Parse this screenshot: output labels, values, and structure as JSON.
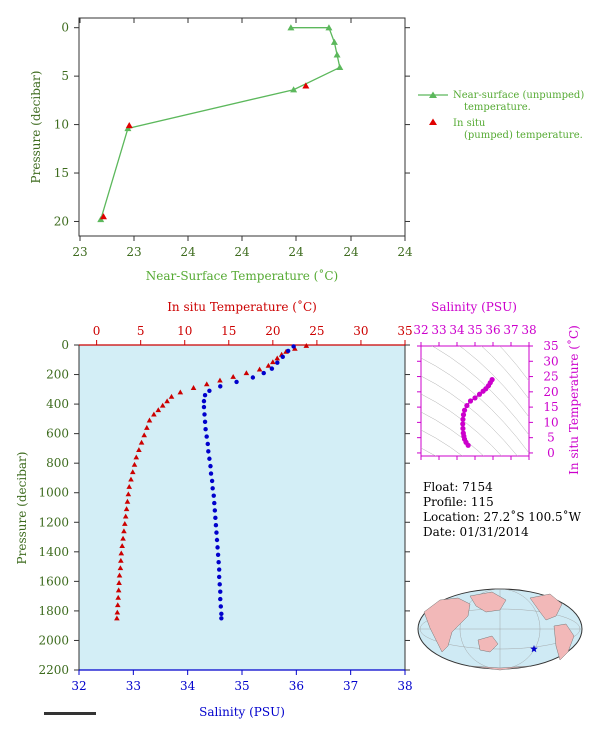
{
  "chart_data": [
    {
      "id": "near-surface",
      "type": "line",
      "xlabel": "Near-Surface Temperature (˚C)",
      "ylabel": "Pressure (decibar)",
      "xticks": [
        "23",
        "23",
        "24",
        "24",
        "24",
        "24",
        "24"
      ],
      "yticks": [
        "0",
        "5",
        "10",
        "15",
        "20"
      ],
      "ylim": [
        -1,
        21.5
      ],
      "y_reversed": true,
      "series": [
        {
          "name": "Near-surface (unpumped) temperature.",
          "marker": "triangle",
          "color": "#5cb85c",
          "points": [
            [
              23.68,
              0
            ],
            [
              23.82,
              0
            ],
            [
              23.84,
              1.5
            ],
            [
              23.85,
              2.8
            ],
            [
              23.86,
              4.1
            ],
            [
              23.69,
              6.4
            ],
            [
              23.08,
              10.4
            ],
            [
              22.98,
              19.8
            ]
          ]
        },
        {
          "name": "In situ (pumped) temperature.",
          "marker": "triangle",
          "color": "#e00000",
          "points": [
            [
              23.735,
              6.0
            ],
            [
              23.085,
              10.1
            ],
            [
              22.99,
              19.5
            ]
          ]
        }
      ]
    },
    {
      "id": "profile",
      "type": "scatter",
      "ylabel": "Pressure (decibar)",
      "yticks": [
        "0",
        "200",
        "400",
        "600",
        "800",
        "1000",
        "1200",
        "1400",
        "1600",
        "1800",
        "2000",
        "2200"
      ],
      "ylim": [
        0,
        2200
      ],
      "temperature_axis": {
        "label": "In situ Temperature (˚C)",
        "ticks": [
          "0",
          "5",
          "10",
          "15",
          "20",
          "25",
          "30",
          "35"
        ],
        "range": [
          -2,
          35
        ],
        "color": "#cc0000"
      },
      "salinity_axis": {
        "label": "Salinity (PSU)",
        "ticks": [
          "32",
          "33",
          "34",
          "35",
          "36",
          "37",
          "38"
        ],
        "range": [
          32,
          38
        ],
        "color": "#0000cc"
      },
      "temperature": [
        [
          23.8,
          5
        ],
        [
          22.5,
          25
        ],
        [
          21.5,
          45
        ],
        [
          21.0,
          65
        ],
        [
          20.5,
          90
        ],
        [
          20.0,
          115
        ],
        [
          19.5,
          140
        ],
        [
          18.5,
          165
        ],
        [
          17.0,
          190
        ],
        [
          15.5,
          215
        ],
        [
          14.0,
          240
        ],
        [
          12.5,
          265
        ],
        [
          11.0,
          290
        ],
        [
          9.5,
          320
        ],
        [
          8.5,
          350
        ],
        [
          8.0,
          380
        ],
        [
          7.5,
          410
        ],
        [
          7.0,
          440
        ],
        [
          6.5,
          470
        ],
        [
          6.0,
          510
        ],
        [
          5.7,
          560
        ],
        [
          5.4,
          610
        ],
        [
          5.1,
          660
        ],
        [
          4.8,
          710
        ],
        [
          4.5,
          760
        ],
        [
          4.3,
          810
        ],
        [
          4.1,
          860
        ],
        [
          3.9,
          910
        ],
        [
          3.7,
          960
        ],
        [
          3.6,
          1010
        ],
        [
          3.5,
          1060
        ],
        [
          3.4,
          1110
        ],
        [
          3.3,
          1160
        ],
        [
          3.2,
          1210
        ],
        [
          3.1,
          1260
        ],
        [
          3.0,
          1310
        ],
        [
          2.9,
          1360
        ],
        [
          2.8,
          1410
        ],
        [
          2.75,
          1460
        ],
        [
          2.7,
          1510
        ],
        [
          2.6,
          1560
        ],
        [
          2.55,
          1610
        ],
        [
          2.5,
          1660
        ],
        [
          2.45,
          1710
        ],
        [
          2.4,
          1760
        ],
        [
          2.35,
          1810
        ],
        [
          2.3,
          1850
        ]
      ],
      "salinity": [
        [
          35.95,
          10
        ],
        [
          35.85,
          40
        ],
        [
          35.75,
          80
        ],
        [
          35.65,
          120
        ],
        [
          35.55,
          160
        ],
        [
          35.4,
          190
        ],
        [
          35.2,
          220
        ],
        [
          34.9,
          250
        ],
        [
          34.6,
          280
        ],
        [
          34.4,
          310
        ],
        [
          34.32,
          340
        ],
        [
          34.3,
          380
        ],
        [
          34.3,
          420
        ],
        [
          34.31,
          470
        ],
        [
          34.32,
          520
        ],
        [
          34.33,
          570
        ],
        [
          34.35,
          620
        ],
        [
          34.37,
          670
        ],
        [
          34.38,
          720
        ],
        [
          34.4,
          770
        ],
        [
          34.42,
          820
        ],
        [
          34.43,
          870
        ],
        [
          34.45,
          920
        ],
        [
          34.46,
          970
        ],
        [
          34.48,
          1020
        ],
        [
          34.49,
          1070
        ],
        [
          34.5,
          1120
        ],
        [
          34.51,
          1170
        ],
        [
          34.52,
          1220
        ],
        [
          34.53,
          1270
        ],
        [
          34.54,
          1320
        ],
        [
          34.55,
          1370
        ],
        [
          34.56,
          1420
        ],
        [
          34.57,
          1470
        ],
        [
          34.58,
          1520
        ],
        [
          34.58,
          1570
        ],
        [
          34.59,
          1620
        ],
        [
          34.6,
          1670
        ],
        [
          34.6,
          1720
        ],
        [
          34.61,
          1770
        ],
        [
          34.62,
          1820
        ],
        [
          34.62,
          1850
        ]
      ]
    },
    {
      "id": "ts-diagram",
      "type": "scatter",
      "xlabel": "Salinity (PSU)",
      "ylabel": "In situ Temperature (˚C)",
      "xticks": [
        "32",
        "33",
        "34",
        "35",
        "36",
        "37",
        "38"
      ],
      "yticks": [
        "0",
        "5",
        "10",
        "15",
        "20",
        "25",
        "30",
        "35"
      ],
      "xlim": [
        32,
        38
      ],
      "ylim": [
        -1,
        35
      ],
      "color": "#cc00cc",
      "points": [
        [
          34.62,
          2.5
        ],
        [
          34.5,
          3.5
        ],
        [
          34.42,
          4.5
        ],
        [
          34.38,
          5.5
        ],
        [
          34.35,
          6.5
        ],
        [
          34.33,
          8
        ],
        [
          34.32,
          9.5
        ],
        [
          34.33,
          11
        ],
        [
          34.36,
          12.5
        ],
        [
          34.42,
          14
        ],
        [
          34.55,
          15.5
        ],
        [
          34.75,
          17
        ],
        [
          35.0,
          18
        ],
        [
          35.25,
          19.2
        ],
        [
          35.45,
          20.2
        ],
        [
          35.6,
          21
        ],
        [
          35.75,
          22
        ],
        [
          35.85,
          23
        ],
        [
          35.95,
          24
        ]
      ]
    },
    {
      "id": "float-map",
      "type": "map",
      "marker": "star"
    }
  ],
  "float_info": {
    "float": "Float:  7154",
    "profile": "Profile:  115",
    "location": "Location:  27.2˚S  100.5˚W",
    "date": "Date:  01/31/2014"
  },
  "colors": {
    "near_surface": "#5cb85c",
    "pumped": "#e00000",
    "temperature": "#cc0000",
    "salinity": "#0000cc",
    "ts": "#cc00cc",
    "plot_bg": "#d3eef6",
    "axis_label": "#3d6b1e"
  }
}
